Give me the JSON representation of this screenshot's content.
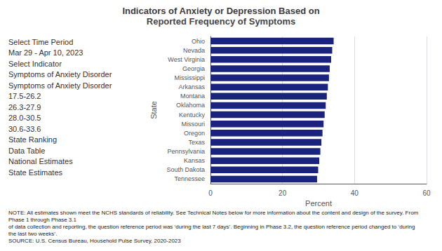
{
  "chart_data": {
    "type": "bar",
    "orientation": "horizontal",
    "title": "Indicators of Anxiety or Depression Based on",
    "subtitle": "Reported Frequency of Symptoms",
    "categories": [
      "Ohio",
      "Nevada",
      "West Virginia",
      "Georgia",
      "Mississippi",
      "Arkansas",
      "Montana",
      "Oklahoma",
      "Kentucky",
      "Missouri",
      "Oregon",
      "Texas",
      "Pennsylvania",
      "Kansas",
      "South Dakota",
      "Tennessee"
    ],
    "values": [
      34.2,
      33.8,
      33.5,
      33.1,
      32.9,
      32.6,
      32.3,
      32.0,
      31.7,
      31.4,
      31.1,
      30.8,
      30.5,
      30.2,
      29.9,
      29.6
    ],
    "color": "#1a237e",
    "xlabel": "Percent",
    "ylabel": "State",
    "xlim": [
      0,
      60
    ],
    "xticks": [
      0,
      20,
      40,
      60
    ],
    "grid": true,
    "annotations": [
      "Select Time Period",
      "Mar 29 - Apr 10, 2023",
      "Select Indicator",
      "Symptoms of Anxiety Disorder",
      "Symptoms of Anxiety Disorder",
      "17.5-26.2",
      "26.3-27.9",
      "28.0-30.5",
      "30.6-33.6",
      "State Ranking",
      "Data Table",
      "National Estimates",
      "State Estimates",
      "NOTE:",
      "All estimates shown meet the NCHS standards of reliability. See Technical Notes below for more information about the content and design of the survey. From Phase 1 through Phase 3.1",
      "of data collection and reporting, the question reference period was ‘during the last 7 days’. Beginning in Phase 3.2, the question reference period changed to ‘during the last two weeks’.",
      "SOURCE:",
      "U.S. Census Bureau, Household Pulse Survey, 2020-2023"
    ]
  }
}
